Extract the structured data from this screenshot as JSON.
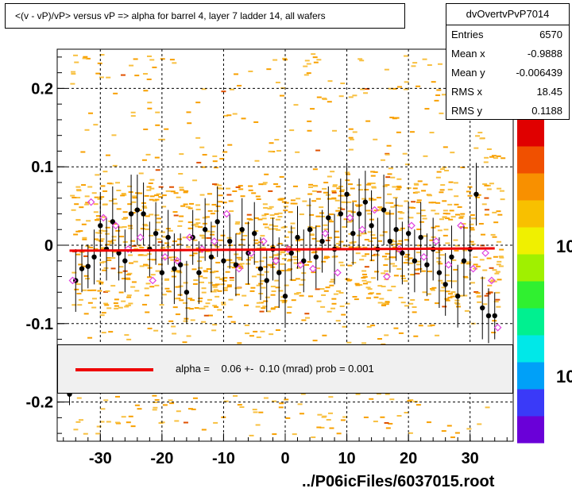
{
  "title": "<(v - vP)/vP> versus  vP => alpha for barrel 4, layer 7 ladder 14, all wafers",
  "stats": {
    "name": "dvOvertvPvP7014",
    "rows": [
      {
        "key": "Entries",
        "value": "6570"
      },
      {
        "key": "Mean x",
        "value": "-0.9888"
      },
      {
        "key": "Mean y",
        "value": "-0.006439"
      },
      {
        "key": "RMS x",
        "value": "18.45"
      },
      {
        "key": "RMS y",
        "value": "0.1188"
      }
    ]
  },
  "fit": {
    "text": "alpha =    0.06 +-  0.10 (mrad) prob = 0.001",
    "line_color": "#ee0000"
  },
  "footer": "../P06icFiles/6037015.root",
  "palette_labels": [
    "10",
    "10"
  ],
  "chart_data": {
    "type": "scatter",
    "title": "<(v - vP)/vP> versus  vP => alpha for barrel 4, layer 7 ladder 14, all wafers",
    "xlim": [
      -37,
      37
    ],
    "ylim": [
      -0.25,
      0.25
    ],
    "x_ticks": [
      -30,
      -20,
      -10,
      0,
      10,
      20,
      30
    ],
    "x_tick_labels": [
      "-30",
      "-20",
      "-10",
      "0",
      "10",
      "20",
      "30"
    ],
    "y_ticks": [
      -0.2,
      -0.1,
      0,
      0.1,
      0.2
    ],
    "y_tick_labels": [
      "-0.2",
      "-0.1",
      "0",
      "0.1",
      "0.2"
    ],
    "grid": true,
    "fit_line": {
      "x": [
        -35,
        34
      ],
      "y": [
        -0.007,
        -0.004
      ],
      "color": "#ee0000"
    },
    "profile_black": [
      {
        "x": -35,
        "y": -0.19,
        "err": 0.014
      },
      {
        "x": -34,
        "y": -0.045,
        "err": 0.04
      },
      {
        "x": -33,
        "y": -0.03,
        "err": 0.03
      },
      {
        "x": -32,
        "y": -0.027,
        "err": 0.028
      },
      {
        "x": -31,
        "y": -0.015,
        "err": 0.035
      },
      {
        "x": -30,
        "y": 0.025,
        "err": 0.04
      },
      {
        "x": -29,
        "y": -0.005,
        "err": 0.04
      },
      {
        "x": -28,
        "y": 0.03,
        "err": 0.045
      },
      {
        "x": -27,
        "y": -0.01,
        "err": 0.035
      },
      {
        "x": -26,
        "y": -0.02,
        "err": 0.04
      },
      {
        "x": -25,
        "y": 0.04,
        "err": 0.05
      },
      {
        "x": -24,
        "y": 0.045,
        "err": 0.045
      },
      {
        "x": -23,
        "y": 0.04,
        "err": 0.04
      },
      {
        "x": -22,
        "y": -0.005,
        "err": 0.035
      },
      {
        "x": -21,
        "y": 0.015,
        "err": 0.04
      },
      {
        "x": -20,
        "y": -0.035,
        "err": 0.04
      },
      {
        "x": -19,
        "y": 0.01,
        "err": 0.035
      },
      {
        "x": -18,
        "y": -0.03,
        "err": 0.045
      },
      {
        "x": -17,
        "y": -0.025,
        "err": 0.04
      },
      {
        "x": -16,
        "y": -0.06,
        "err": 0.04
      },
      {
        "x": -15,
        "y": 0.01,
        "err": 0.035
      },
      {
        "x": -14,
        "y": -0.035,
        "err": 0.04
      },
      {
        "x": -13,
        "y": 0.02,
        "err": 0.04
      },
      {
        "x": -12,
        "y": -0.015,
        "err": 0.045
      },
      {
        "x": -11,
        "y": 0.03,
        "err": 0.045
      },
      {
        "x": -10,
        "y": -0.02,
        "err": 0.04
      },
      {
        "x": -9,
        "y": 0.005,
        "err": 0.035
      },
      {
        "x": -8,
        "y": -0.025,
        "err": 0.04
      },
      {
        "x": -7,
        "y": 0.02,
        "err": 0.04
      },
      {
        "x": -6,
        "y": -0.01,
        "err": 0.04
      },
      {
        "x": -5,
        "y": 0.015,
        "err": 0.04
      },
      {
        "x": -4,
        "y": -0.03,
        "err": 0.04
      },
      {
        "x": -3,
        "y": -0.045,
        "err": 0.04
      },
      {
        "x": -2,
        "y": -0.005,
        "err": 0.04
      },
      {
        "x": -1,
        "y": -0.035,
        "err": 0.045
      },
      {
        "x": 0,
        "y": -0.065,
        "err": 0.04
      },
      {
        "x": 1,
        "y": -0.01,
        "err": 0.035
      },
      {
        "x": 2,
        "y": 0.01,
        "err": 0.04
      },
      {
        "x": 3,
        "y": -0.02,
        "err": 0.04
      },
      {
        "x": 4,
        "y": 0.02,
        "err": 0.04
      },
      {
        "x": 5,
        "y": -0.015,
        "err": 0.04
      },
      {
        "x": 6,
        "y": 0.005,
        "err": 0.04
      },
      {
        "x": 7,
        "y": 0.035,
        "err": 0.04
      },
      {
        "x": 8,
        "y": -0.005,
        "err": 0.045
      },
      {
        "x": 9,
        "y": 0.04,
        "err": 0.045
      },
      {
        "x": 10,
        "y": 0.065,
        "err": 0.04
      },
      {
        "x": 11,
        "y": 0.015,
        "err": 0.04
      },
      {
        "x": 12,
        "y": 0.04,
        "err": 0.045
      },
      {
        "x": 13,
        "y": 0.055,
        "err": 0.04
      },
      {
        "x": 14,
        "y": 0.025,
        "err": 0.045
      },
      {
        "x": 15,
        "y": -0.005,
        "err": 0.04
      },
      {
        "x": 16,
        "y": 0.045,
        "err": 0.045
      },
      {
        "x": 17,
        "y": 0.005,
        "err": 0.04
      },
      {
        "x": 18,
        "y": 0.02,
        "err": 0.04
      },
      {
        "x": 19,
        "y": -0.01,
        "err": 0.04
      },
      {
        "x": 20,
        "y": 0.015,
        "err": 0.04
      },
      {
        "x": 21,
        "y": -0.02,
        "err": 0.04
      },
      {
        "x": 22,
        "y": 0.01,
        "err": 0.045
      },
      {
        "x": 23,
        "y": -0.025,
        "err": 0.04
      },
      {
        "x": 24,
        "y": -0.005,
        "err": 0.04
      },
      {
        "x": 25,
        "y": -0.035,
        "err": 0.045
      },
      {
        "x": 26,
        "y": -0.05,
        "err": 0.04
      },
      {
        "x": 27,
        "y": -0.015,
        "err": 0.04
      },
      {
        "x": 28,
        "y": -0.065,
        "err": 0.04
      },
      {
        "x": 29,
        "y": -0.02,
        "err": 0.045
      },
      {
        "x": 30,
        "y": -0.005,
        "err": 0.04
      },
      {
        "x": 31,
        "y": 0.065,
        "err": 0.04
      },
      {
        "x": 32,
        "y": -0.08,
        "err": 0.04
      },
      {
        "x": 33,
        "y": -0.09,
        "err": 0.035
      },
      {
        "x": 34,
        "y": -0.09,
        "err": 0.03
      }
    ],
    "profile_magenta": [
      {
        "x": -34.5,
        "y": -0.045
      },
      {
        "x": -31.5,
        "y": 0.055
      },
      {
        "x": -29.5,
        "y": 0.035
      },
      {
        "x": -27.5,
        "y": 0.025
      },
      {
        "x": -25.5,
        "y": -0.005
      },
      {
        "x": -23.5,
        "y": 0.01
      },
      {
        "x": -21.5,
        "y": -0.045
      },
      {
        "x": -19.5,
        "y": -0.015
      },
      {
        "x": -17.5,
        "y": -0.02
      },
      {
        "x": -15.5,
        "y": 0.01
      },
      {
        "x": -13.5,
        "y": -0.005
      },
      {
        "x": -11.5,
        "y": 0.005
      },
      {
        "x": -9.5,
        "y": 0.04
      },
      {
        "x": -7.5,
        "y": -0.03
      },
      {
        "x": -5.5,
        "y": -0.01
      },
      {
        "x": -3.5,
        "y": 0.005
      },
      {
        "x": -1.5,
        "y": -0.02
      },
      {
        "x": 0.5,
        "y": -0.005
      },
      {
        "x": 2.5,
        "y": -0.025
      },
      {
        "x": 4.5,
        "y": -0.03
      },
      {
        "x": 6.5,
        "y": 0.015
      },
      {
        "x": 8.5,
        "y": -0.035
      },
      {
        "x": 10.5,
        "y": 0.035
      },
      {
        "x": 12.5,
        "y": 0.02
      },
      {
        "x": 14.5,
        "y": 0.045
      },
      {
        "x": 16.5,
        "y": -0.04
      },
      {
        "x": 18.5,
        "y": -0.005
      },
      {
        "x": 20.5,
        "y": 0.025
      },
      {
        "x": 22.5,
        "y": -0.015
      },
      {
        "x": 24.5,
        "y": 0.005
      },
      {
        "x": 26.5,
        "y": -0.025
      },
      {
        "x": 28.5,
        "y": 0.025
      },
      {
        "x": 30.5,
        "y": -0.03
      },
      {
        "x": 32.5,
        "y": -0.01
      },
      {
        "x": 33.5,
        "y": -0.045
      },
      {
        "x": 34.5,
        "y": -0.105
      }
    ],
    "palette_colors": [
      "#6a00d8",
      "#3a3af8",
      "#00a0f8",
      "#00e8e8",
      "#00f090",
      "#30f030",
      "#a0f000",
      "#f0f000",
      "#f8c000",
      "#f89000",
      "#f05000",
      "#e00000"
    ]
  }
}
